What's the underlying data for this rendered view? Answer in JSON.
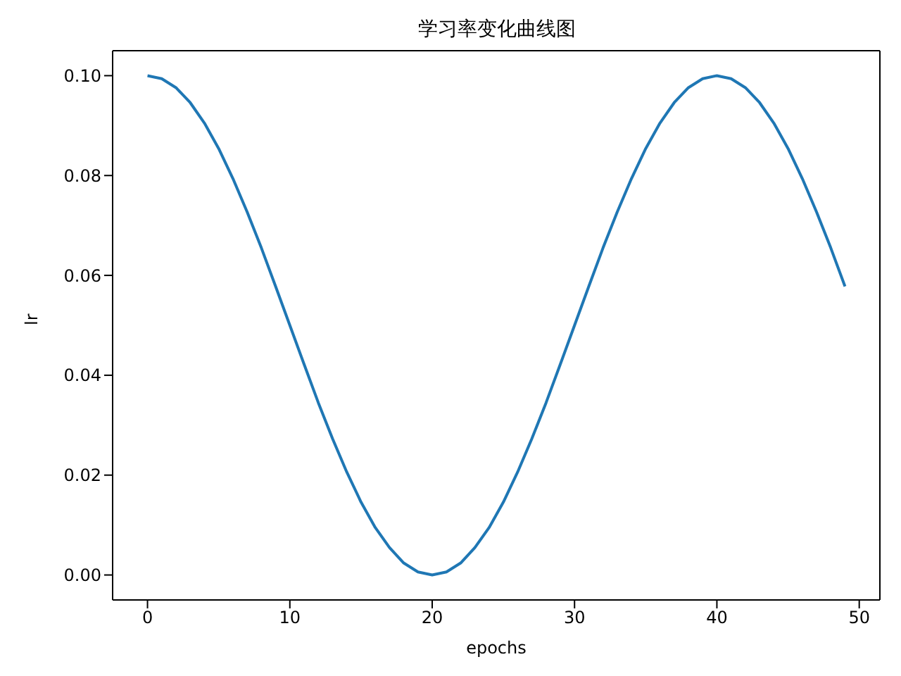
{
  "chart_data": {
    "type": "line",
    "title": "学习率变化曲线图",
    "xlabel": "epochs",
    "ylabel": "lr",
    "x": [
      0,
      1,
      2,
      3,
      4,
      5,
      6,
      7,
      8,
      9,
      10,
      11,
      12,
      13,
      14,
      15,
      16,
      17,
      18,
      19,
      20,
      21,
      22,
      23,
      24,
      25,
      26,
      27,
      28,
      29,
      30,
      31,
      32,
      33,
      34,
      35,
      36,
      37,
      38,
      39,
      40,
      41,
      42,
      43,
      44,
      45,
      46,
      47,
      48,
      49
    ],
    "series": [
      {
        "color": "#1f77b4",
        "values": [
          0.1,
          0.0994,
          0.0976,
          0.0946,
          0.0905,
          0.0854,
          0.0794,
          0.0727,
          0.0655,
          0.0578,
          0.05,
          0.0422,
          0.0345,
          0.0273,
          0.0206,
          0.0146,
          0.0095,
          0.0055,
          0.0024,
          0.0006,
          0,
          0.0006,
          0.0024,
          0.0055,
          0.0095,
          0.0146,
          0.0206,
          0.0273,
          0.0345,
          0.0422,
          0.05,
          0.0578,
          0.0655,
          0.0727,
          0.0794,
          0.0854,
          0.0905,
          0.0946,
          0.0976,
          0.0994,
          0.1,
          0.0994,
          0.0976,
          0.0946,
          0.0905,
          0.0854,
          0.0794,
          0.0727,
          0.0655,
          0.0578
        ]
      }
    ],
    "xlim": [
      -2.45,
      51.45
    ],
    "xticks": [
      0,
      10,
      20,
      30,
      40,
      50
    ],
    "ylim": [
      -0.005,
      0.105
    ],
    "yticks": [
      {
        "value": 0,
        "label": "0.00"
      },
      {
        "value": 0.02,
        "label": "0.02"
      },
      {
        "value": 0.04,
        "label": "0.04"
      },
      {
        "value": 0.06,
        "label": "0.06"
      },
      {
        "value": 0.08,
        "label": "0.08"
      },
      {
        "value": 0.1,
        "label": "0.10"
      }
    ],
    "grid": false,
    "legend": false,
    "marker": "none",
    "line_style": "solid"
  }
}
